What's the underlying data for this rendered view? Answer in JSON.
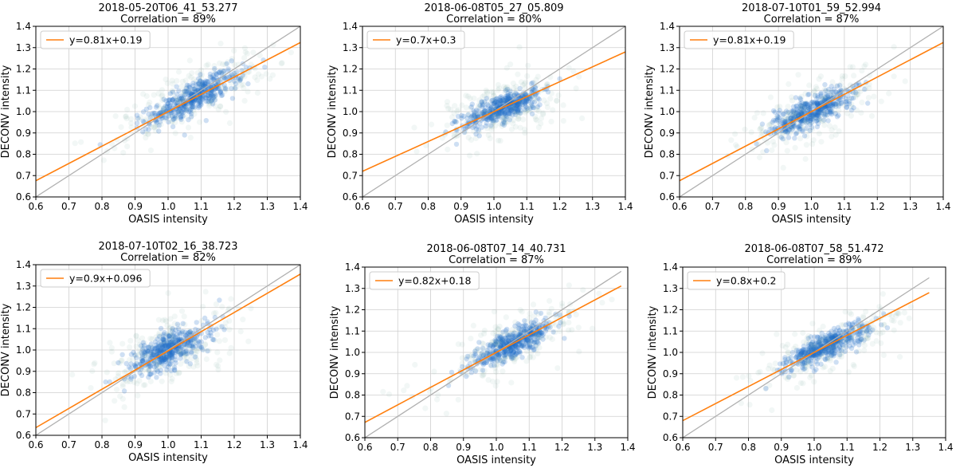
{
  "colors": {
    "fit_line": "#ff7f0e",
    "identity_line": "#b0b0b0",
    "scatter_dense": "#1f6fc9",
    "scatter_sparse": "#6aaa9e",
    "grid": "#cfcfcf"
  },
  "chart_data": [
    {
      "type": "scatter",
      "title": "2018-05-20T06_41_53.277",
      "subtitle": "Correlation = 89%",
      "xlabel": "OASIS intensity",
      "ylabel": "DECONV intensity",
      "xlim": [
        0.6,
        1.4
      ],
      "ylim": [
        0.6,
        1.4
      ],
      "xticks": [
        "0.6",
        "0.7",
        "0.8",
        "0.9",
        "1.0",
        "1.1",
        "1.2",
        "1.3",
        "1.4"
      ],
      "yticks": [
        "0.6",
        "0.7",
        "0.8",
        "0.9",
        "1.0",
        "1.1",
        "1.2",
        "1.3",
        "1.4"
      ],
      "grid": true,
      "legend_position": "top-left",
      "fit": {
        "slope": 0.81,
        "intercept": 0.19,
        "label": "y=0.81x+0.19",
        "x_range": [
          0.6,
          1.4
        ]
      },
      "identity": {
        "x_range": [
          0.6,
          1.4
        ]
      },
      "cloud": {
        "center": [
          1.08,
          1.07
        ],
        "std_major": 0.12,
        "std_minor": 0.035,
        "slope": 0.85
      }
    },
    {
      "type": "scatter",
      "title": "2018-06-08T05_27_05.809",
      "subtitle": "Correlation = 80%",
      "xlabel": "OASIS intensity",
      "ylabel": "DECONV intensity",
      "xlim": [
        0.6,
        1.4
      ],
      "ylim": [
        0.6,
        1.4
      ],
      "xticks": [
        "0.6",
        "0.7",
        "0.8",
        "0.9",
        "1.0",
        "1.1",
        "1.2",
        "1.3",
        "1.4"
      ],
      "yticks": [
        "0.6",
        "0.7",
        "0.8",
        "0.9",
        "1.0",
        "1.1",
        "1.2",
        "1.3",
        "1.4"
      ],
      "grid": true,
      "legend_position": "top-left",
      "fit": {
        "slope": 0.7,
        "intercept": 0.3,
        "label": "y=0.7x+0.3",
        "x_range": [
          0.6,
          1.4
        ]
      },
      "identity": {
        "x_range": [
          0.6,
          1.4
        ]
      },
      "cloud": {
        "center": [
          1.03,
          1.02
        ],
        "std_major": 0.09,
        "std_minor": 0.035,
        "slope": 0.7
      }
    },
    {
      "type": "scatter",
      "title": "2018-07-10T01_59_52.994",
      "subtitle": "Correlation = 87%",
      "xlabel": "OASIS intensity",
      "ylabel": "DECONV intensity",
      "xlim": [
        0.6,
        1.4
      ],
      "ylim": [
        0.6,
        1.4
      ],
      "xticks": [
        "0.6",
        "0.7",
        "0.8",
        "0.9",
        "1.0",
        "1.1",
        "1.2",
        "1.3",
        "1.4"
      ],
      "yticks": [
        "0.6",
        "0.7",
        "0.8",
        "0.9",
        "1.0",
        "1.1",
        "1.2",
        "1.3",
        "1.4"
      ],
      "grid": true,
      "legend_position": "top-left",
      "fit": {
        "slope": 0.81,
        "intercept": 0.19,
        "label": "y=0.81x+0.19",
        "x_range": [
          0.6,
          1.4
        ]
      },
      "identity": {
        "x_range": [
          0.6,
          1.4
        ]
      },
      "cloud": {
        "center": [
          1.0,
          1.0
        ],
        "std_major": 0.1,
        "std_minor": 0.035,
        "slope": 0.85
      }
    },
    {
      "type": "scatter",
      "title": "2018-07-10T02_16_38.723",
      "subtitle": "Correlation = 82%",
      "xlabel": "OASIS intensity",
      "ylabel": "DECONV intensity",
      "xlim": [
        0.6,
        1.4
      ],
      "ylim": [
        0.6,
        1.4
      ],
      "xticks": [
        "0.6",
        "0.7",
        "0.8",
        "0.9",
        "1.0",
        "1.1",
        "1.2",
        "1.3",
        "1.4"
      ],
      "yticks": [
        "0.6",
        "0.7",
        "0.8",
        "0.9",
        "1.0",
        "1.1",
        "1.2",
        "1.3",
        "1.4"
      ],
      "grid": true,
      "legend_position": "top-left",
      "fit": {
        "slope": 0.9,
        "intercept": 0.096,
        "label": "y=0.9x+0.096",
        "x_range": [
          0.6,
          1.4
        ]
      },
      "identity": {
        "x_range": [
          0.6,
          1.4
        ]
      },
      "cloud": {
        "center": [
          1.0,
          1.0
        ],
        "std_major": 0.1,
        "std_minor": 0.04,
        "slope": 0.9
      }
    },
    {
      "type": "scatter",
      "title": "2018-06-08T07_14_40.731",
      "subtitle": "Correlation = 87%",
      "xlabel": "OASIS intensity",
      "ylabel": "DECONV intensity",
      "xlim": [
        0.6,
        1.4
      ],
      "ylim": [
        0.6,
        1.4
      ],
      "xticks": [
        "0.6",
        "0.7",
        "0.8",
        "0.9",
        "1.0",
        "1.1",
        "1.2",
        "1.3",
        "1.4"
      ],
      "yticks": [
        "0.6",
        "0.7",
        "0.8",
        "0.9",
        "1.0",
        "1.1",
        "1.2",
        "1.3",
        "1.4"
      ],
      "grid": true,
      "legend_position": "top-left",
      "fit": {
        "slope": 0.82,
        "intercept": 0.18,
        "label": "y=0.82x+0.18",
        "x_range": [
          0.6,
          1.38
        ]
      },
      "identity": {
        "x_range": [
          0.6,
          1.38
        ]
      },
      "cloud": {
        "center": [
          1.05,
          1.04
        ],
        "std_major": 0.11,
        "std_minor": 0.03,
        "slope": 0.85
      }
    },
    {
      "type": "scatter",
      "title": "2018-06-08T07_58_51.472",
      "subtitle": "Correlation = 89%",
      "xlabel": "OASIS intensity",
      "ylabel": "DECONV intensity",
      "xlim": [
        0.6,
        1.4
      ],
      "ylim": [
        0.6,
        1.4
      ],
      "xticks": [
        "0.6",
        "0.7",
        "0.8",
        "0.9",
        "1.0",
        "1.1",
        "1.2",
        "1.3",
        "1.4"
      ],
      "yticks": [
        "0.6",
        "0.7",
        "0.8",
        "0.9",
        "1.0",
        "1.1",
        "1.2",
        "1.3",
        "1.4"
      ],
      "grid": true,
      "legend_position": "top-left",
      "fit": {
        "slope": 0.8,
        "intercept": 0.2,
        "label": "y=0.8x+0.2",
        "x_range": [
          0.6,
          1.35
        ]
      },
      "identity": {
        "x_range": [
          0.6,
          1.35
        ]
      },
      "cloud": {
        "center": [
          1.04,
          1.03
        ],
        "std_major": 0.1,
        "std_minor": 0.03,
        "slope": 0.82
      }
    }
  ]
}
